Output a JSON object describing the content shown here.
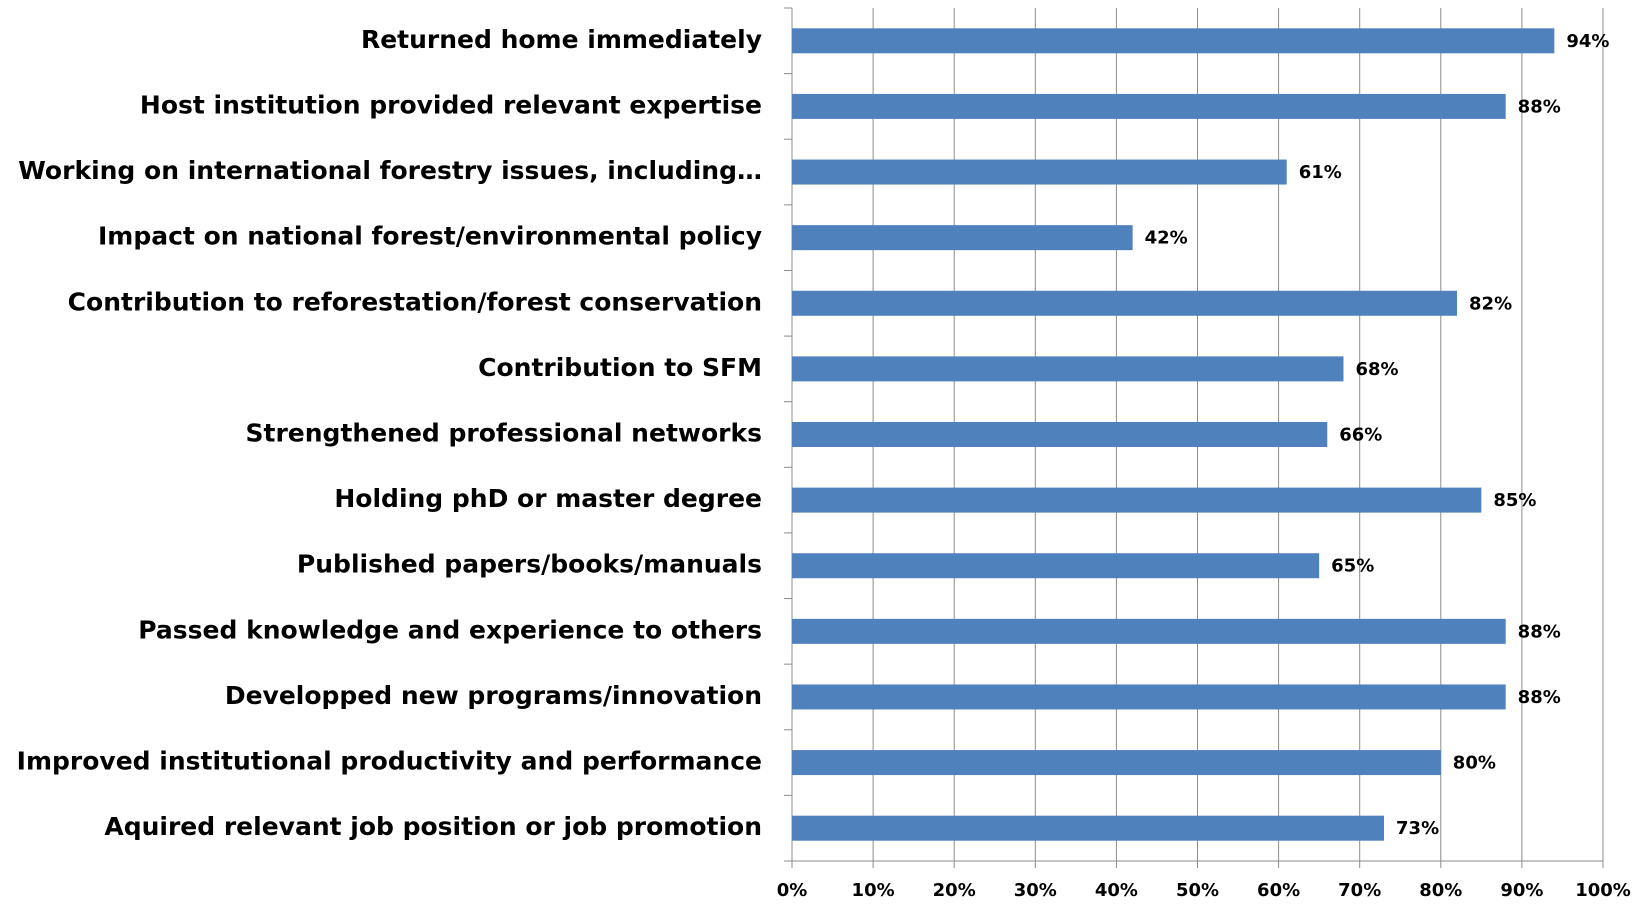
{
  "chart_data": {
    "type": "bar",
    "orientation": "horizontal",
    "categories": [
      "Returned home immediately",
      "Host institution provided relevant expertise",
      "Working on international forestry issues, including…",
      "Impact on national forest/environmental policy",
      "Contribution to reforestation/forest conservation",
      "Contribution to SFM",
      "Strengthened professional networks",
      "Holding phD or master degree",
      "Published papers/books/manuals",
      "Passed knowledge and experience to others",
      "Developped new programs/innovation",
      "Improved institutional productivity and performance",
      "Aquired relevant job position or job promotion"
    ],
    "values": [
      94,
      88,
      61,
      42,
      82,
      68,
      66,
      85,
      65,
      88,
      88,
      80,
      73
    ],
    "value_labels": [
      "94%",
      "88%",
      "61%",
      "42%",
      "82%",
      "68%",
      "66%",
      "85%",
      "65%",
      "88%",
      "88%",
      "80%",
      "73%"
    ],
    "color": "#4f81bd",
    "xlim": [
      0,
      100
    ],
    "xticks": [
      {
        "value": 0,
        "label": "0%"
      },
      {
        "value": 10,
        "label": "10%"
      },
      {
        "value": 20,
        "label": "20%"
      },
      {
        "value": 30,
        "label": "30%"
      },
      {
        "value": 40,
        "label": "40%"
      },
      {
        "value": 50,
        "label": "50%"
      },
      {
        "value": 60,
        "label": "60%"
      },
      {
        "value": 70,
        "label": "70%"
      },
      {
        "value": 80,
        "label": "80%"
      },
      {
        "value": 90,
        "label": "90%"
      },
      {
        "value": 100,
        "label": "100%"
      }
    ],
    "grid": true
  }
}
